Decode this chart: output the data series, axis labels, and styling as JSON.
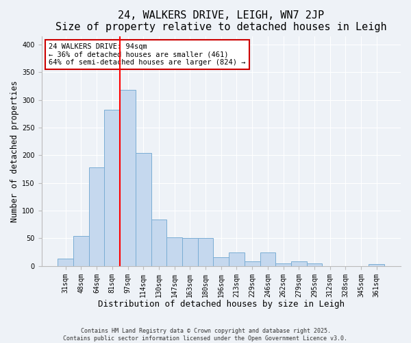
{
  "title": "24, WALKERS DRIVE, LEIGH, WN7 2JP",
  "subtitle": "Size of property relative to detached houses in Leigh",
  "xlabel": "Distribution of detached houses by size in Leigh",
  "ylabel": "Number of detached properties",
  "categories": [
    "31sqm",
    "48sqm",
    "64sqm",
    "81sqm",
    "97sqm",
    "114sqm",
    "130sqm",
    "147sqm",
    "163sqm",
    "180sqm",
    "196sqm",
    "213sqm",
    "229sqm",
    "246sqm",
    "262sqm",
    "279sqm",
    "295sqm",
    "312sqm",
    "328sqm",
    "345sqm",
    "361sqm"
  ],
  "values": [
    13,
    54,
    178,
    282,
    318,
    204,
    84,
    52,
    50,
    50,
    16,
    25,
    8,
    25,
    5,
    9,
    5,
    0,
    0,
    0,
    4
  ],
  "bar_color": "#c5d8ee",
  "bar_edge_color": "#7aadd4",
  "red_line_x": 3.5,
  "red_line_label": "24 WALKERS DRIVE: 94sqm",
  "annotation_line1": "← 36% of detached houses are smaller (461)",
  "annotation_line2": "64% of semi-detached houses are larger (824) →",
  "annotation_box_color": "#ffffff",
  "annotation_box_edge": "#cc0000",
  "ylim": [
    0,
    415
  ],
  "yticks": [
    0,
    50,
    100,
    150,
    200,
    250,
    300,
    350,
    400
  ],
  "background_color": "#eef2f7",
  "footer1": "Contains HM Land Registry data © Crown copyright and database right 2025.",
  "footer2": "Contains public sector information licensed under the Open Government Licence v3.0.",
  "title_fontsize": 11,
  "subtitle_fontsize": 9.5,
  "xlabel_fontsize": 9,
  "ylabel_fontsize": 8.5,
  "tick_fontsize": 7,
  "annotation_fontsize": 7.5,
  "footer_fontsize": 6
}
